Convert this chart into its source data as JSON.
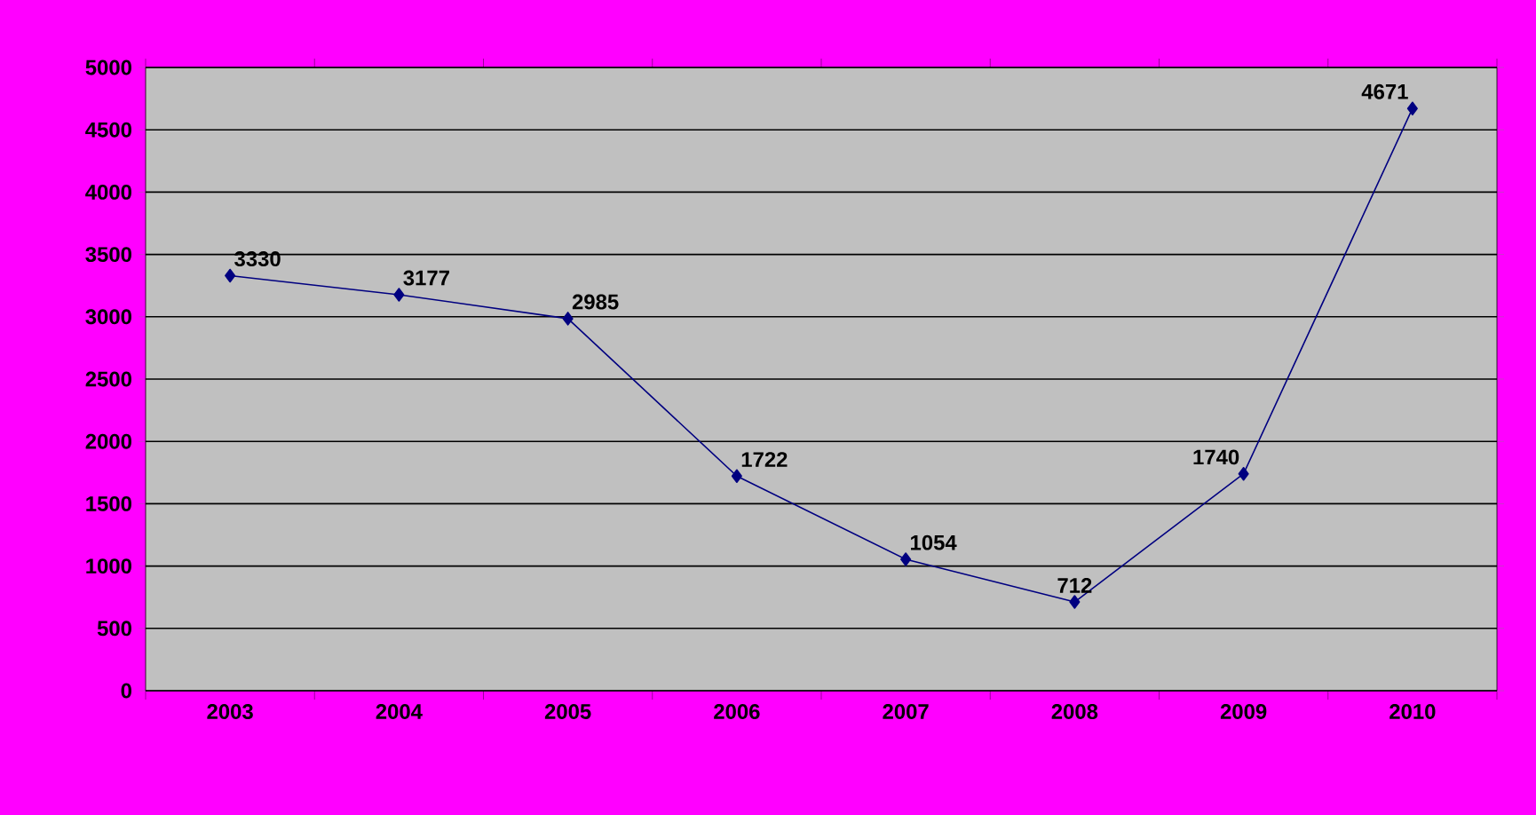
{
  "chart_data": {
    "type": "line",
    "categories": [
      "2003",
      "2004",
      "2005",
      "2006",
      "2007",
      "2008",
      "2009",
      "2010"
    ],
    "series": [
      {
        "color": "#000080",
        "values": [
          3330,
          3177,
          2985,
          1722,
          1054,
          712,
          1740,
          4671
        ]
      }
    ],
    "ylim": [
      0,
      5000
    ],
    "yticks": [
      0,
      500,
      1000,
      1500,
      2000,
      2500,
      3000,
      3500,
      4000,
      4500,
      5000
    ],
    "grid": "y",
    "marker": "diamond",
    "data_labels": true
  }
}
